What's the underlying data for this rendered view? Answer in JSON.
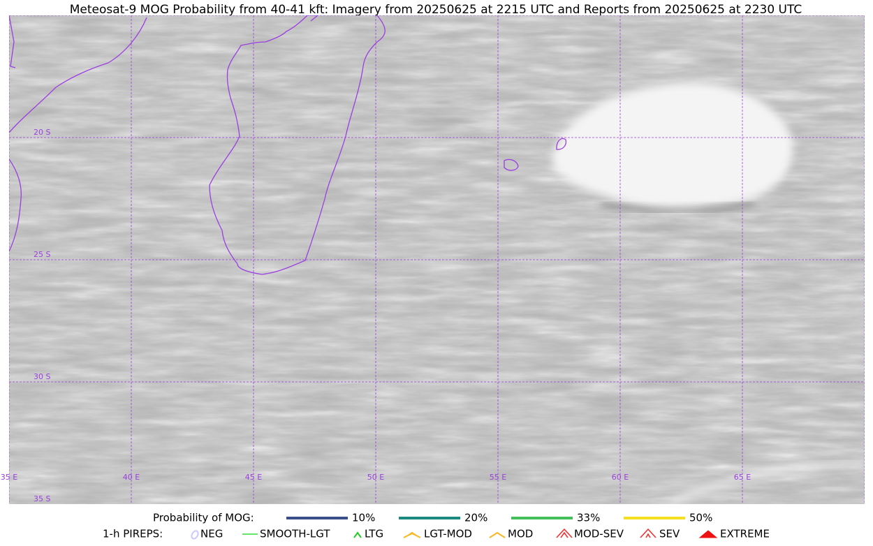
{
  "title": "Meteosat-9 MOG Probability from 40-41 kft: Imagery from 20250625 at 2215 UTC and Reports from 20250625 at 2230 UTC",
  "map": {
    "lat_labels": [
      "20 S",
      "25 S",
      "30 S",
      "35 S"
    ],
    "lon_labels": [
      "35 E",
      "40 E",
      "45 E",
      "50 E",
      "55 E",
      "60 E",
      "65 E"
    ]
  },
  "legend": {
    "probability_label": "Probability of MOG:",
    "probability_items": [
      {
        "label": "10%",
        "color": "#3a4f8a"
      },
      {
        "label": "20%",
        "color": "#1a8a80"
      },
      {
        "label": "33%",
        "color": "#44c05a"
      },
      {
        "label": "50%",
        "color": "#f5e020"
      }
    ],
    "pireps_label": "1-h PIREPS:",
    "pirep_items": [
      {
        "label": "NEG",
        "color": "#c8c8ff"
      },
      {
        "label": "SMOOTH-LGT",
        "color": "#33dd33"
      },
      {
        "label": "LTG",
        "color": "#22cc22"
      },
      {
        "label": "LGT-MOD",
        "color": "#f5b820"
      },
      {
        "label": "MOD",
        "color": "#f5b820"
      },
      {
        "label": "MOD-SEV",
        "color": "#ee3333"
      },
      {
        "label": "SEV",
        "color": "#ee3333"
      },
      {
        "label": "EXTREME",
        "color": "#ee1111"
      }
    ]
  }
}
